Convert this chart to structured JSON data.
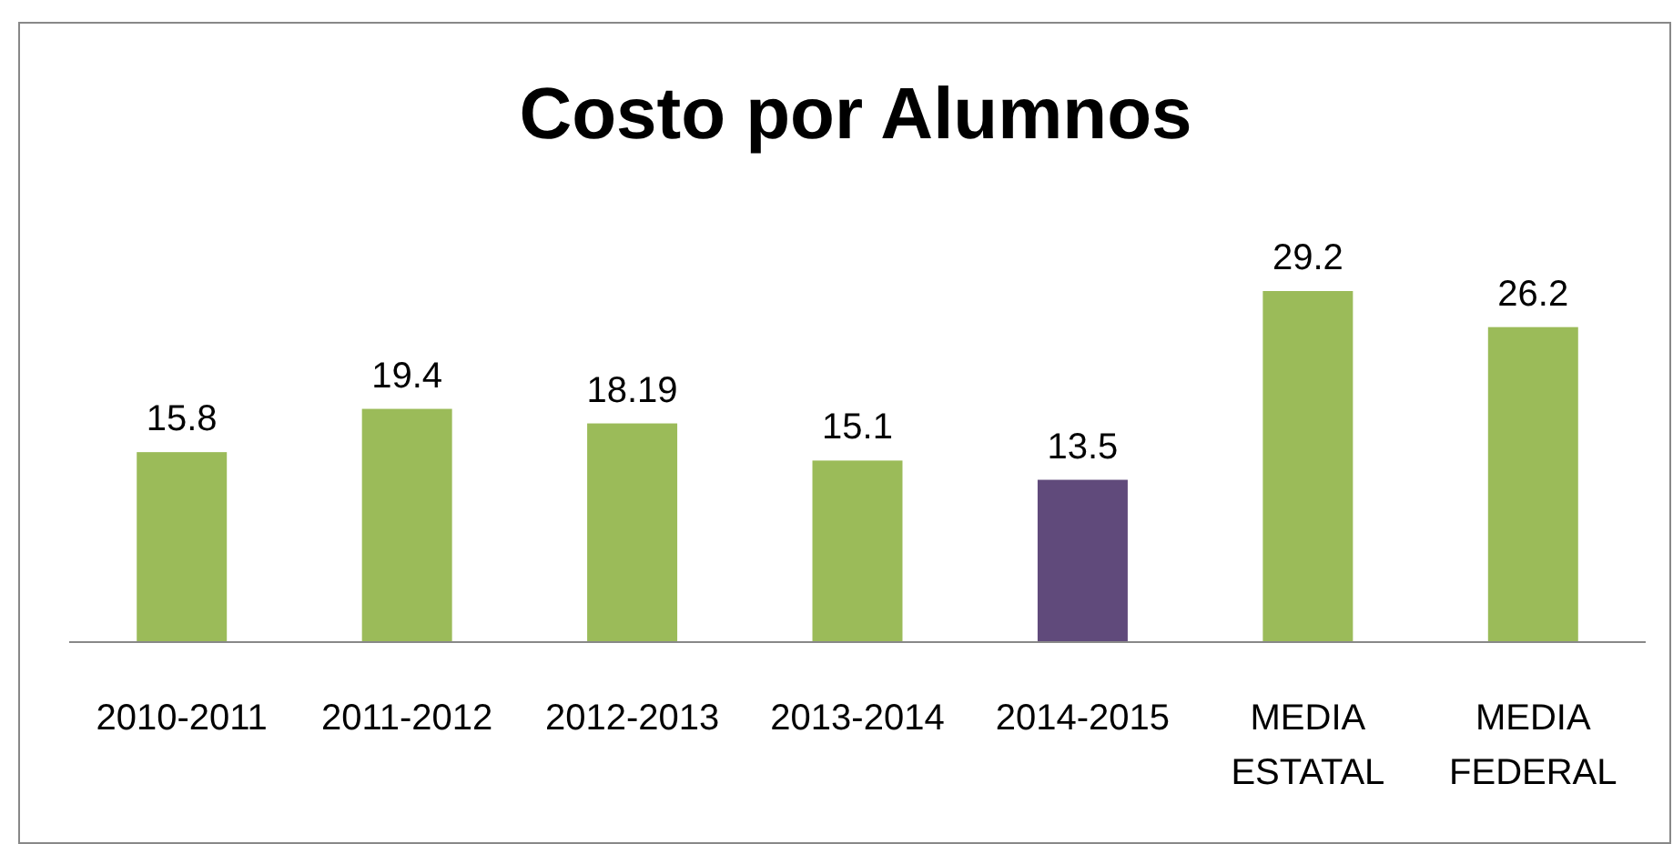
{
  "chart_data": {
    "type": "bar",
    "title": "Costo por Alumnos",
    "categories": [
      "2010-2011",
      "2011-2012",
      "2012-2013",
      "2013-2014",
      "2014-2015",
      "MEDIA ESTATAL",
      "MEDIA FEDERAL"
    ],
    "values": [
      15.8,
      19.4,
      18.19,
      15.1,
      13.5,
      29.2,
      26.2
    ],
    "colors": [
      "#9bbb59",
      "#9bbb59",
      "#9bbb59",
      "#9bbb59",
      "#604a7b",
      "#9bbb59",
      "#9bbb59"
    ],
    "data_labels": true
  }
}
